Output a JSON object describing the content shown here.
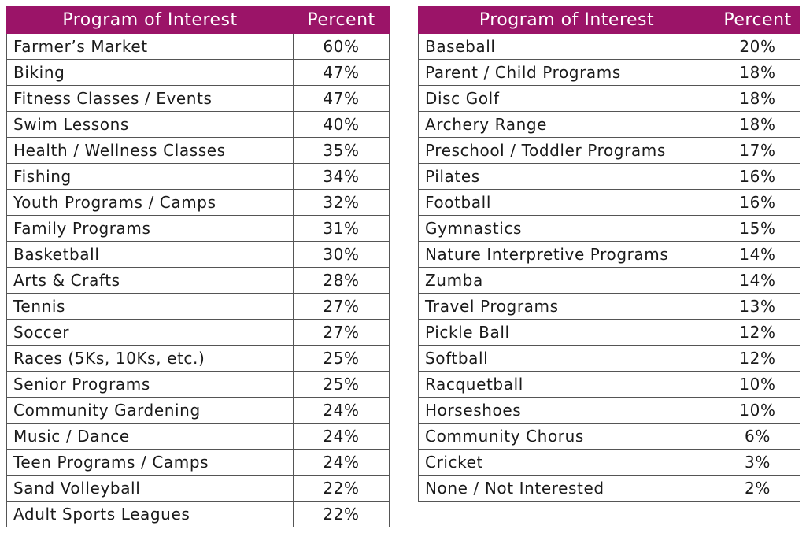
{
  "chart_data": [
    {
      "type": "table",
      "columns": [
        "Program of Interest",
        "Percent"
      ],
      "rows": [
        {
          "program": "Farmer’s Market",
          "percent": "60%"
        },
        {
          "program": "Biking",
          "percent": "47%"
        },
        {
          "program": "Fitness Classes / Events",
          "percent": "47%"
        },
        {
          "program": "Swim Lessons",
          "percent": "40%"
        },
        {
          "program": "Health / Wellness Classes",
          "percent": "35%"
        },
        {
          "program": "Fishing",
          "percent": "34%"
        },
        {
          "program": "Youth Programs / Camps",
          "percent": "32%"
        },
        {
          "program": "Family Programs",
          "percent": "31%"
        },
        {
          "program": "Basketball",
          "percent": "30%"
        },
        {
          "program": "Arts & Crafts",
          "percent": "28%"
        },
        {
          "program": "Tennis",
          "percent": "27%"
        },
        {
          "program": "Soccer",
          "percent": "27%"
        },
        {
          "program": "Races (5Ks, 10Ks, etc.)",
          "percent": "25%"
        },
        {
          "program": "Senior Programs",
          "percent": "25%"
        },
        {
          "program": "Community Gardening",
          "percent": "24%"
        },
        {
          "program": "Music / Dance",
          "percent": "24%"
        },
        {
          "program": "Teen Programs / Camps",
          "percent": "24%"
        },
        {
          "program": "Sand Volleyball",
          "percent": "22%"
        },
        {
          "program": "Adult Sports Leagues",
          "percent": "22%"
        }
      ]
    },
    {
      "type": "table",
      "columns": [
        "Program of Interest",
        "Percent"
      ],
      "rows": [
        {
          "program": "Baseball",
          "percent": "20%"
        },
        {
          "program": "Parent / Child Programs",
          "percent": "18%"
        },
        {
          "program": "Disc Golf",
          "percent": "18%"
        },
        {
          "program": "Archery Range",
          "percent": "18%"
        },
        {
          "program": "Preschool / Toddler Programs",
          "percent": "17%"
        },
        {
          "program": "Pilates",
          "percent": "16%"
        },
        {
          "program": "Football",
          "percent": "16%"
        },
        {
          "program": "Gymnastics",
          "percent": "15%"
        },
        {
          "program": "Nature Interpretive Programs",
          "percent": "14%"
        },
        {
          "program": "Zumba",
          "percent": "14%"
        },
        {
          "program": "Travel Programs",
          "percent": "13%"
        },
        {
          "program": "Pickle Ball",
          "percent": "12%"
        },
        {
          "program": "Softball",
          "percent": "12%"
        },
        {
          "program": "Racquetball",
          "percent": "10%"
        },
        {
          "program": "Horseshoes",
          "percent": "10%"
        },
        {
          "program": "Community Chorus",
          "percent": "6%"
        },
        {
          "program": "Cricket",
          "percent": "3%"
        },
        {
          "program": "None / Not Interested",
          "percent": "2%"
        }
      ]
    }
  ],
  "colors": {
    "header_background": "#9b1468",
    "header_text": "#ffffff",
    "border": "#555555"
  }
}
